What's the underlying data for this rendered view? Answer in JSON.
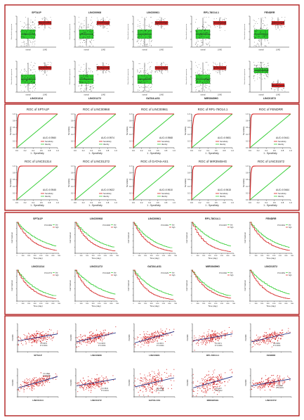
{
  "figure": {
    "panel_a": {
      "row1_titles": [
        "SPTA1P",
        "LINC00968",
        "LINC00961",
        "RP1-78O14.1",
        "FENDRR"
      ],
      "row2_titles": [
        "LINC01314",
        "LINC01272",
        "GATA6-AS1",
        "MIR3945HG",
        "LINC01572"
      ],
      "legend_labels": [
        "normal",
        "LUAD"
      ],
      "y_label": "Normalized expression"
    },
    "panel_b": {
      "titles": [
        "ROC of SPTA1P",
        "ROC of LINC00968",
        "ROC of LINC00961",
        "ROC of RP1-78O14.1",
        "ROC of FENDRR",
        "ROC of LINC01314",
        "ROC of LINC01272",
        "ROC of GATA6-AS1",
        "ROC of MIR3945HG",
        "ROC of LINC01572"
      ],
      "auc_values": [
        "AUC=0.9560",
        "AUC=0.9574",
        "AUC=0.9568",
        "AUC=0.9651",
        "AUC=0.9441",
        "AUC=0.9545",
        "AUC=0.9622",
        "AUC=0.9610",
        "AUC=0.9615",
        "AUC=0.9464"
      ],
      "legend_items": [
        "Sensitivity",
        "Identity"
      ],
      "x_label": "1 - Specificity",
      "y_label": "Sensitivity",
      "x_ticks": [
        "0.0",
        "0.2",
        "0.4",
        "0.6",
        "0.8",
        "1.0"
      ],
      "y_ticks": [
        "0.0",
        "0.2",
        "0.4",
        "0.6",
        "0.8",
        "1.0"
      ]
    },
    "panel_c": {
      "titles": [
        "SPTA1P",
        "LINC00968",
        "LINC00961",
        "RP1-78O14.1",
        "FENDRR",
        "LINC01314",
        "LINC01272",
        "GATA6-AS1",
        "MIR3945HG",
        "LINC01572"
      ],
      "p_values": [
        "P=0.0062",
        "P=0.0003",
        "P=0.0091",
        "P=0.0037",
        "P=0.0001",
        "P=0.0772",
        "P=0.0226",
        "P=0.0129",
        "P=0.0340",
        "P=0.0051"
      ],
      "legend_items": [
        "low",
        "high"
      ],
      "x_label": "Time (day)",
      "y_label": "Cum Survival",
      "x_ticks": [
        "0",
        "1000",
        "2000",
        "3000",
        "4000",
        "5000",
        "6000",
        "7000"
      ]
    },
    "panel_d": {
      "x_labels": [
        "SPTA1P",
        "LINC00968",
        "LINC00961",
        "RP1-78O14.1",
        "FENDRR",
        "LINC01314",
        "LINC01272",
        "GATA6-AS1",
        "MIR3945HG",
        "LINC01572"
      ],
      "r_values": [
        "r=0.3576",
        "r=0.3578",
        "r=0.3572",
        "r=0.3571",
        "r=0.3556",
        "r=0.1802",
        "r=0.3543",
        "r=0.2036",
        "r=0.1467",
        "r=0.1442"
      ],
      "p_values": [
        "P<0.0001",
        "P<0.0001",
        "P<0.0001",
        "P<0.0001",
        "P<0.0001",
        "P<0.0001",
        "P<0.0001",
        "P<0.0001",
        "P=0.0012",
        "P=0.0015"
      ],
      "y_label": "PGRMC"
    },
    "colors": {
      "frame": "#b01e1e",
      "green": "#2ecc2e",
      "red": "#d42020",
      "navy": "#1a2a80",
      "grey": "#777777"
    }
  }
}
